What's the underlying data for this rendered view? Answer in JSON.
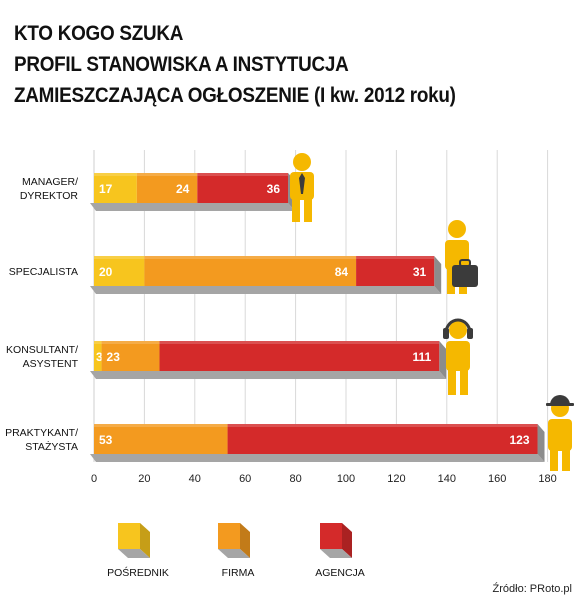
{
  "title_lines": [
    "KTO KOGO SZUKA",
    "PROFIL STANOWISKA A INSTYTUCJA",
    "ZAMIESZCZAJĄCA OGŁOSZENIE (I kw. 2012 roku)"
  ],
  "source": "Źródło: PRoto.pl",
  "colors": {
    "posrednik": "#f7c51e",
    "firma": "#f39a1f",
    "agencja": "#d42a2a",
    "shadow": "#a5a5a5",
    "figure": "#f5b800",
    "accessory": "#3b3b3b"
  },
  "icons": [
    "manager-figure-icon",
    "briefcase-figure-icon",
    "headset-figure-icon",
    "cap-figure-icon"
  ],
  "chart_data": {
    "type": "bar",
    "orientation": "horizontal",
    "stacked": true,
    "categories": [
      [
        "MANAGER/",
        "DYREKTOR"
      ],
      [
        "SPECJALISTA"
      ],
      [
        "KONSULTANT/",
        "ASYSTENT"
      ],
      [
        "PRAKTYKANT/",
        "STAŻYSTA"
      ]
    ],
    "series": [
      {
        "name": "POŚREDNIK",
        "color_key": "posrednik",
        "values": [
          17,
          20,
          3,
          0
        ]
      },
      {
        "name": "FIRMA",
        "color_key": "firma",
        "values": [
          24,
          84,
          23,
          53
        ]
      },
      {
        "name": "AGENCJA",
        "color_key": "agencja",
        "values": [
          36,
          31,
          111,
          123
        ]
      }
    ],
    "xlim": [
      0,
      180
    ],
    "xticks": [
      0,
      20,
      40,
      60,
      80,
      100,
      120,
      140,
      160,
      180
    ],
    "grid": true,
    "legend_position": "bottom"
  }
}
